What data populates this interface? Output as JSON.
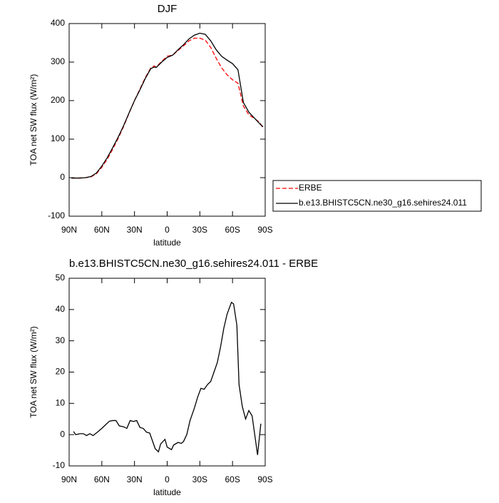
{
  "chart_data": [
    {
      "type": "line",
      "title": "DJF",
      "x_label": "latitude",
      "y_label": "TOA net SW flux (W/m²)",
      "x": [
        88,
        85,
        80,
        75,
        70,
        65,
        60,
        55,
        50,
        45,
        40,
        35,
        30,
        25,
        20,
        15,
        12,
        10,
        5,
        0,
        -5,
        -10,
        -15,
        -20,
        -25,
        -30,
        -35,
        -40,
        -45,
        -50,
        -55,
        -60,
        -65,
        -70,
        -75,
        -80,
        -85,
        -88
      ],
      "xlim": [
        90,
        -90
      ],
      "xticks": [
        {
          "value": 90,
          "label": "90N"
        },
        {
          "value": 60,
          "label": "60N"
        },
        {
          "value": 30,
          "label": "30N"
        },
        0,
        {
          "value": -30,
          "label": "30S"
        },
        {
          "value": -60,
          "label": "60S"
        },
        {
          "value": -90,
          "label": "90S"
        }
      ],
      "ylim": [
        -100,
        400
      ],
      "yticks": [
        -100,
        0,
        100,
        200,
        300,
        400
      ],
      "legend": "right",
      "series": [
        {
          "name": "ERBE",
          "color": "#ff0000",
          "dashed": true,
          "values": [
            -1,
            -1,
            -1,
            0,
            2,
            10,
            27,
            48,
            74,
            102,
            133,
            167,
            200,
            230,
            260,
            285,
            290,
            287,
            302,
            315,
            318,
            330,
            342,
            355,
            362,
            362,
            357,
            338,
            310,
            285,
            267,
            254,
            245,
            186,
            163,
            154,
            143,
            129
          ]
        },
        {
          "name": "b.e13.BHISTC5CN.ne30_g16.sehires24.011",
          "color": "#000000",
          "dashed": false,
          "values": [
            -1,
            -1,
            -1,
            0,
            3,
            12,
            30,
            52,
            78,
            105,
            135,
            168,
            200,
            228,
            258,
            283,
            287,
            286,
            300,
            312,
            318,
            332,
            345,
            360,
            370,
            375,
            372,
            355,
            332,
            315,
            305,
            296,
            280,
            195,
            170,
            155,
            140,
            132
          ]
        }
      ]
    },
    {
      "type": "line",
      "title": "b.e13.BHISTC5CN.ne30_g16.sehires24.011 - ERBE",
      "x_label": "latitude",
      "y_label": "TOA net SW flux (W/m²)",
      "x": [
        86,
        84,
        80,
        77,
        74,
        71,
        68,
        64,
        60,
        57,
        53,
        50,
        47,
        44,
        40,
        37,
        34,
        31,
        28,
        25,
        22,
        19,
        16,
        13,
        11,
        8,
        6,
        2,
        0,
        -4,
        -6,
        -10,
        -13,
        -15,
        -18,
        -21,
        -25,
        -28,
        -31,
        -34,
        -37,
        -40,
        -43,
        -46,
        -49,
        -52,
        -55,
        -59,
        -61,
        -64,
        -66,
        -69,
        -72,
        -75,
        -78,
        -80,
        -83,
        -86
      ],
      "xlim": [
        90,
        -90
      ],
      "xticks": [
        {
          "value": 90,
          "label": "90N"
        },
        {
          "value": 60,
          "label": "60N"
        },
        {
          "value": 30,
          "label": "30N"
        },
        0,
        {
          "value": -30,
          "label": "30S"
        },
        {
          "value": -60,
          "label": "60S"
        },
        {
          "value": -90,
          "label": "90S"
        }
      ],
      "ylim": [
        -10,
        50
      ],
      "yticks": [
        -10,
        0,
        10,
        20,
        30,
        40,
        50
      ],
      "series": [
        {
          "color": "#000000",
          "dashed": false,
          "values": [
            1,
            0,
            0.3,
            0.3,
            -0.3,
            0.3,
            -0.3,
            0.8,
            2,
            3,
            4.3,
            4.5,
            4.5,
            2.8,
            2.5,
            2,
            4.5,
            4.2,
            4.5,
            2.3,
            2,
            0.8,
            0.5,
            -2.5,
            -4.5,
            -5.5,
            -3,
            -1.5,
            -4,
            -4.8,
            -3.3,
            -2.5,
            -2.8,
            -2.2,
            0,
            4.5,
            8.5,
            12,
            14.8,
            14.5,
            16,
            17,
            20,
            23,
            28,
            34,
            38.5,
            42.3,
            41.8,
            35,
            16,
            9,
            5,
            7.7,
            6,
            1,
            -6.5,
            3.5
          ]
        }
      ]
    }
  ]
}
